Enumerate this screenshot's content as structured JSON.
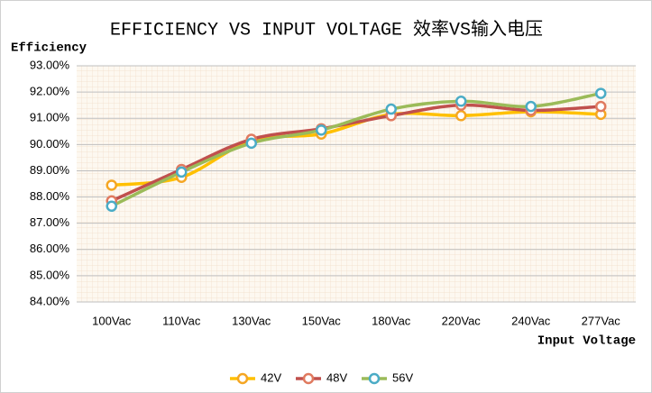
{
  "chart_data": {
    "type": "line",
    "title": "EFFICIENCY VS INPUT VOLTAGE 效率VS输入电压",
    "y_label": "Efficiency",
    "x_label": "Input Voltage",
    "categories": [
      "100Vac",
      "110Vac",
      "130Vac",
      "150Vac",
      "180Vac",
      "220Vac",
      "240Vac",
      "277Vac"
    ],
    "series": [
      {
        "name": "42V",
        "color": "#ffc000",
        "marker_color": "#f5a623",
        "values": [
          88.45,
          88.75,
          90.15,
          90.4,
          91.15,
          91.1,
          91.25,
          91.15
        ]
      },
      {
        "name": "48V",
        "color": "#c0504d",
        "marker_color": "#e07a5f",
        "values": [
          87.85,
          89.05,
          90.2,
          90.6,
          91.1,
          91.5,
          91.3,
          91.45
        ]
      },
      {
        "name": "56V",
        "color": "#9bbb59",
        "marker_color": "#4bacc6",
        "values": [
          87.65,
          88.95,
          90.05,
          90.55,
          91.35,
          91.65,
          91.45,
          91.95
        ]
      }
    ],
    "ylim": [
      84,
      93
    ],
    "yticks": [
      {
        "value": 84,
        "label": "84.00%"
      },
      {
        "value": 85,
        "label": "85.00%"
      },
      {
        "value": 86,
        "label": "86.00%"
      },
      {
        "value": 87,
        "label": "87.00%"
      },
      {
        "value": 88,
        "label": "88.00%"
      },
      {
        "value": 89,
        "label": "89.00%"
      },
      {
        "value": 90,
        "label": "90.00%"
      },
      {
        "value": 91,
        "label": "91.00%"
      },
      {
        "value": 92,
        "label": "92.00%"
      },
      {
        "value": 93,
        "label": "93.00%"
      }
    ],
    "grid": true,
    "smooth": true,
    "legend": "bottom"
  }
}
